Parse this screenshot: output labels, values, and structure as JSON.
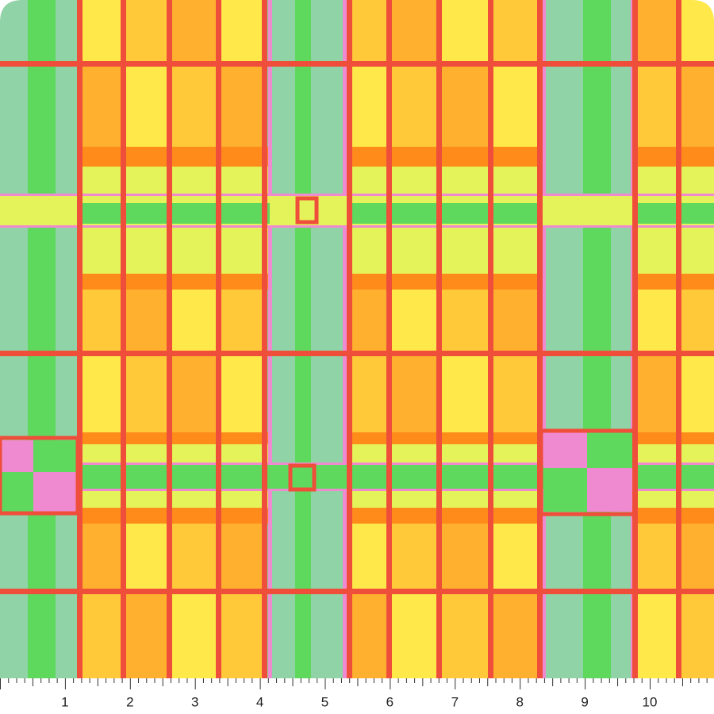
{
  "ruler": {
    "labels": [
      1,
      2,
      3,
      4,
      5,
      6,
      7,
      8,
      9,
      10
    ]
  }
}
